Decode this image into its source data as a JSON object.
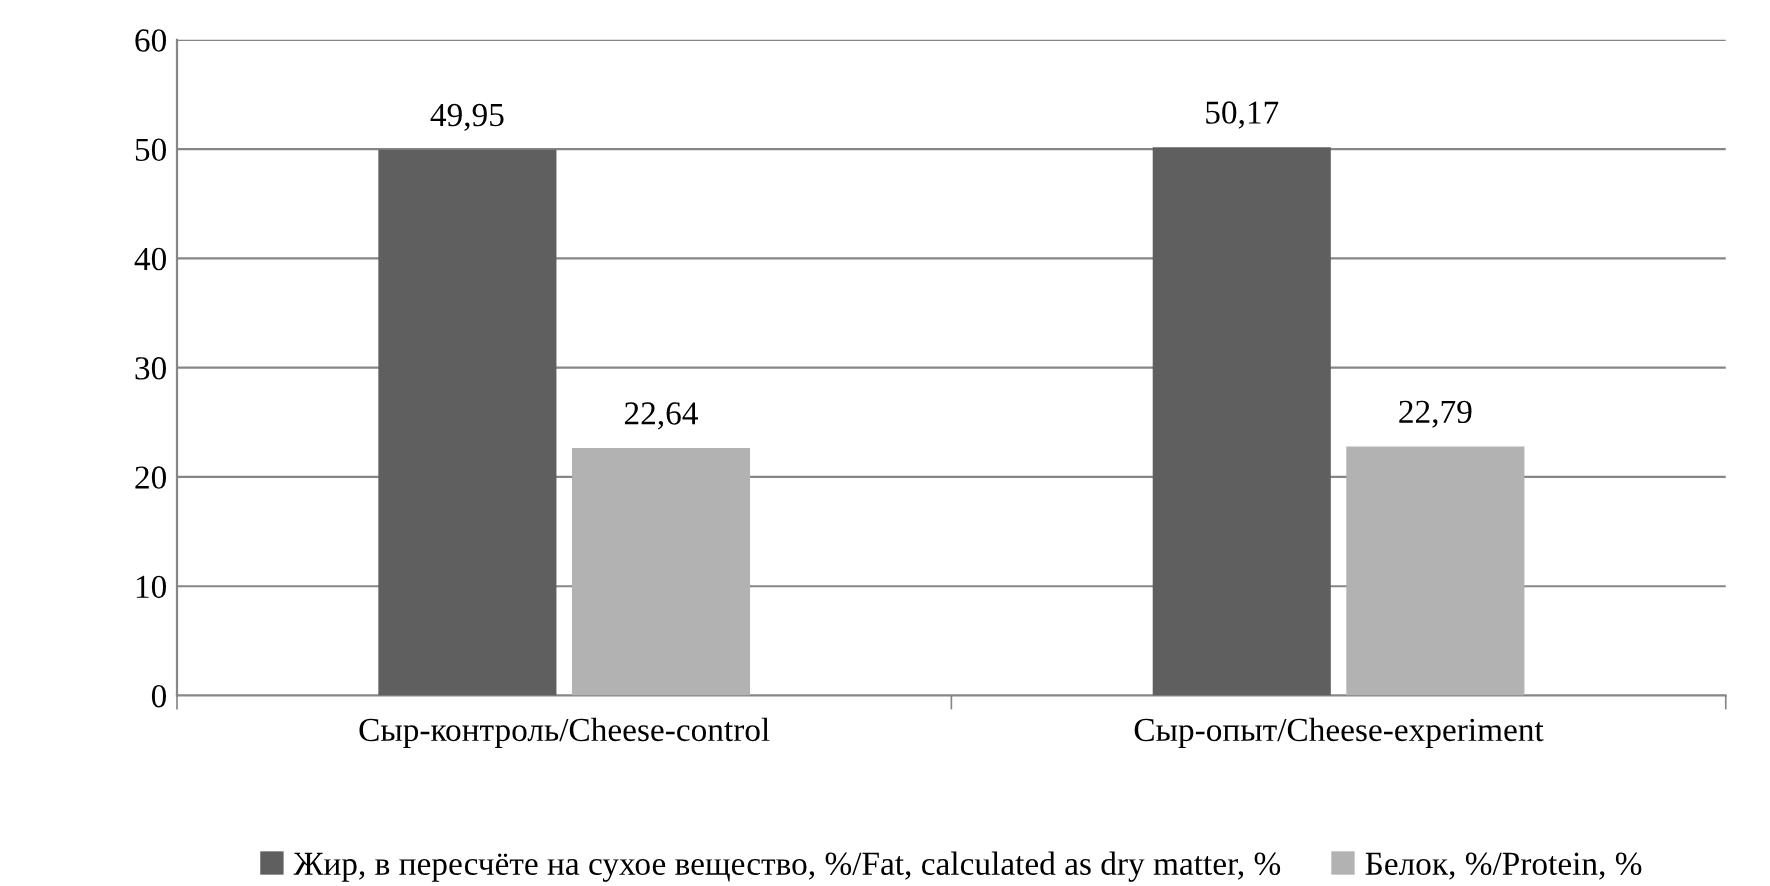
{
  "chart_data": {
    "type": "bar",
    "categories": [
      "Сыр-контроль/Cheese-control",
      "Сыр-опыт/Cheese-experiment"
    ],
    "series": [
      {
        "name": "Жир, в пересчёте на сухое вещество, %/Fat, calculated as dry matter, %",
        "color": "#5f5f5f",
        "values": [
          49.95,
          50.17
        ],
        "value_labels": [
          "49,95",
          "50,17"
        ]
      },
      {
        "name": "Белок, %/Protein, %",
        "color": "#b2b2b2",
        "values": [
          22.64,
          22.79
        ],
        "value_labels": [
          "22,64",
          "22,79"
        ]
      }
    ],
    "ylim": [
      0,
      60
    ],
    "yticks": [
      0,
      10,
      20,
      30,
      40,
      50,
      60
    ],
    "grid": "y",
    "legend": "bottom"
  }
}
